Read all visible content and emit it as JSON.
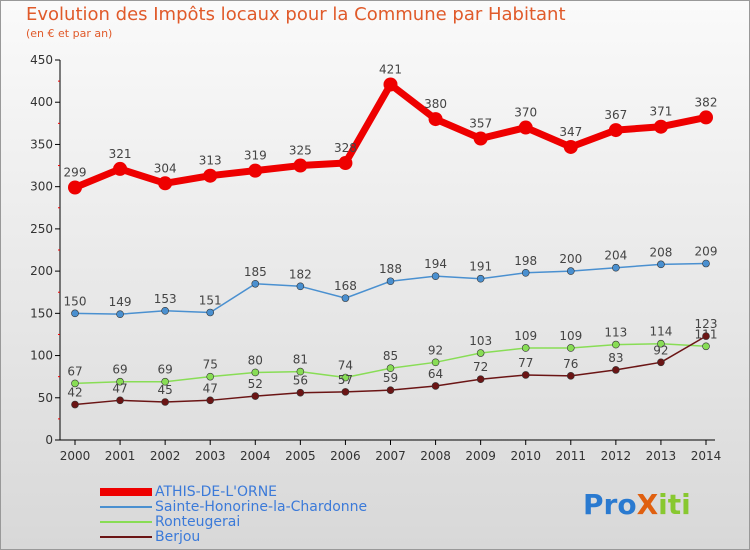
{
  "chart_data": {
    "type": "line",
    "title": "Evolution des Impôts locaux pour la Commune par Habitant",
    "subtitle": "(en € et par an)",
    "x": [
      "2000",
      "2001",
      "2002",
      "2003",
      "2004",
      "2005",
      "2006",
      "2007",
      "2008",
      "2009",
      "2010",
      "2011",
      "2012",
      "2013",
      "2014"
    ],
    "ylim": [
      0,
      450
    ],
    "yticks": [
      "0",
      "50",
      "100",
      "150",
      "200",
      "250",
      "300",
      "350",
      "400",
      "450"
    ],
    "series": [
      {
        "name": "ATHIS-DE-L'ORNE",
        "color": "#ee0000",
        "values": [
          299,
          321,
          304,
          313,
          319,
          325,
          328,
          421,
          380,
          357,
          370,
          347,
          367,
          371,
          382
        ]
      },
      {
        "name": "Sainte-Honorine-la-Chardonne",
        "color": "#4a90d0",
        "values": [
          150,
          149,
          153,
          151,
          185,
          182,
          168,
          188,
          194,
          191,
          198,
          200,
          204,
          208,
          209
        ]
      },
      {
        "name": "Ronteugerai",
        "color": "#88dd55",
        "values": [
          67,
          69,
          69,
          75,
          80,
          81,
          74,
          85,
          92,
          103,
          109,
          109,
          113,
          114,
          111
        ]
      },
      {
        "name": "Berjou",
        "color": "#6b1515",
        "values": [
          42,
          47,
          45,
          47,
          52,
          56,
          57,
          59,
          64,
          72,
          77,
          76,
          83,
          92,
          123
        ]
      }
    ]
  },
  "logo": "ProXiti"
}
